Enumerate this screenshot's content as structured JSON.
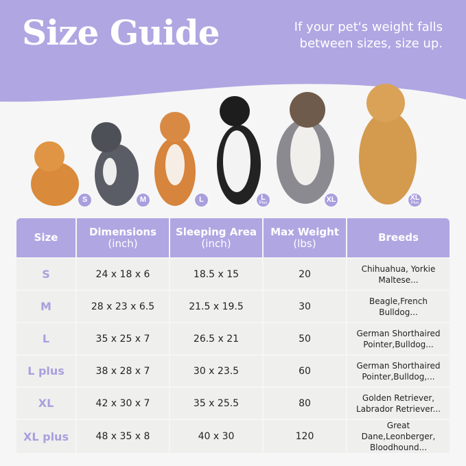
{
  "header": {
    "title": "Size Guide",
    "tip_line1": "If your pet's weight falls",
    "tip_line2": "between sizes, size up."
  },
  "colors": {
    "accent": "#b0a6e2",
    "size_text": "#a99fdd",
    "cell": "#efefee",
    "background": "#f6f6f6"
  },
  "dogs": [
    {
      "badge": "S",
      "sub": "",
      "breed_image": "pomeranian"
    },
    {
      "badge": "M",
      "sub": "",
      "breed_image": "french-bulldog"
    },
    {
      "badge": "L",
      "sub": "",
      "breed_image": "shiba-inu"
    },
    {
      "badge": "L",
      "sub": "Plus",
      "breed_image": "border-collie"
    },
    {
      "badge": "XL",
      "sub": "",
      "breed_image": "australian-shepherd"
    },
    {
      "badge": "XL",
      "sub": "Plus",
      "breed_image": "golden-retriever"
    }
  ],
  "table": {
    "headers": [
      [
        "Size",
        ""
      ],
      [
        "Dimensions",
        "(inch)"
      ],
      [
        "Sleeping Area",
        "(inch)"
      ],
      [
        "Max Weight",
        "(lbs)"
      ],
      [
        "Breeds",
        ""
      ]
    ],
    "rows": [
      [
        "S",
        "24 x 18 x 6",
        "18.5 x 15",
        "20",
        "Chihuahua, Yorkie",
        "Maltese..."
      ],
      [
        "M",
        "28 x 23 x 6.5",
        "21.5 x 19.5",
        "30",
        "Beagle,French",
        "Bulldog..."
      ],
      [
        "L",
        "35 x 25 x 7",
        "26.5 x 21",
        "50",
        "German Shorthaired",
        "Pointer,Bulldog..."
      ],
      [
        "L plus",
        "38 x 28 x 7",
        "30 x 23.5",
        "60",
        "German Shorthaired",
        "Pointer,Bulldog,..."
      ],
      [
        "XL",
        "42 x 30 x 7",
        "35 x 25.5",
        "80",
        "Golden Retriever,",
        "Labrador Retriever..."
      ],
      [
        "XL plus",
        "48 x 35 x 8",
        "40 x 30",
        "120",
        "Great Dane,Leonberger,",
        "Bloodhound..."
      ]
    ]
  }
}
